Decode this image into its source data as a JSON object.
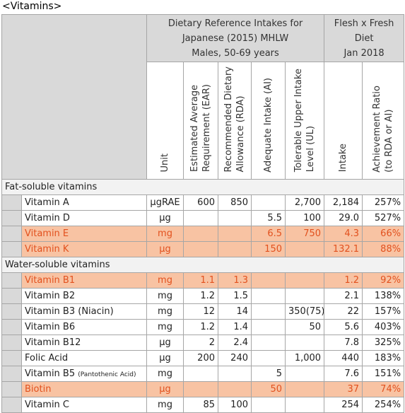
{
  "title": "<Vitamins>",
  "header": {
    "group1": [
      "Dietary Reference Intakes for",
      "Japanese (2015) MHLW",
      "Males, 50-69 years"
    ],
    "group2": [
      "Flesh x Fresh",
      "Diet",
      "Jan 2018"
    ],
    "columns": [
      [
        "Unit"
      ],
      [
        "Estimated Average",
        "Requirement (EAR)"
      ],
      [
        "Recommended Dietary",
        "Allowance (RDA)"
      ],
      [
        "Adequate Intake (AI)"
      ],
      [
        "Tolerable Upper Intake",
        "Level (UL)"
      ],
      [
        "Intake"
      ],
      [
        "Achievement Ratio",
        "(to RDA or AI)"
      ]
    ]
  },
  "sections": [
    {
      "title": "Fat-soluble vitamins",
      "rows": [
        {
          "name": "Vitamin A",
          "cells": [
            "µgRAE",
            "600",
            "850",
            null,
            "2,700",
            "2,184",
            "257%"
          ],
          "highlight": false
        },
        {
          "name": "Vitamin D",
          "cells": [
            "µg",
            null,
            null,
            "5.5",
            "100",
            "29.0",
            "527%"
          ],
          "highlight": false
        },
        {
          "name": "Vitamin E",
          "cells": [
            "mg",
            null,
            null,
            "6.5",
            "750",
            "4.3",
            "66%"
          ],
          "highlight": true
        },
        {
          "name": "Vitamin K",
          "cells": [
            "µg",
            null,
            null,
            "150",
            null,
            "132.1",
            "88%"
          ],
          "highlight": true
        }
      ]
    },
    {
      "title": "Water-soluble vitamins",
      "rows": [
        {
          "name": "Vitamin B1",
          "cells": [
            "mg",
            "1.1",
            "1.3",
            null,
            null,
            "1.2",
            "92%"
          ],
          "highlight": true
        },
        {
          "name": "Vitamin B2",
          "cells": [
            "mg",
            "1.2",
            "1.5",
            null,
            null,
            "2.1",
            "138%"
          ],
          "highlight": false
        },
        {
          "name": "Vitamin B3 (Niacin)",
          "cells": [
            "mg",
            "12",
            "14",
            null,
            "350(75)",
            "22",
            "157%"
          ],
          "highlight": false
        },
        {
          "name": "Vitamin B6",
          "cells": [
            "mg",
            "1.2",
            "1.4",
            null,
            "50",
            "5.6",
            "403%"
          ],
          "highlight": false
        },
        {
          "name": "Vitamin B12",
          "cells": [
            "µg",
            "2",
            "2.4",
            null,
            null,
            "7.8",
            "325%"
          ],
          "highlight": false
        },
        {
          "name": "Folic Acid",
          "cells": [
            "µg",
            "200",
            "240",
            null,
            "1,000",
            "440",
            "183%"
          ],
          "highlight": false
        },
        {
          "name": "Vitamin B5",
          "note": "(Pantothenic Acid)",
          "cells": [
            "mg",
            null,
            null,
            "5",
            null,
            "7.6",
            "151%"
          ],
          "highlight": false
        },
        {
          "name": "Biotin",
          "cells": [
            "µg",
            null,
            null,
            "50",
            null,
            "37",
            "74%"
          ],
          "highlight": true
        },
        {
          "name": "Vitamin C",
          "cells": [
            "mg",
            "85",
            "100",
            null,
            null,
            "254",
            "254%"
          ],
          "highlight": false
        }
      ]
    }
  ]
}
